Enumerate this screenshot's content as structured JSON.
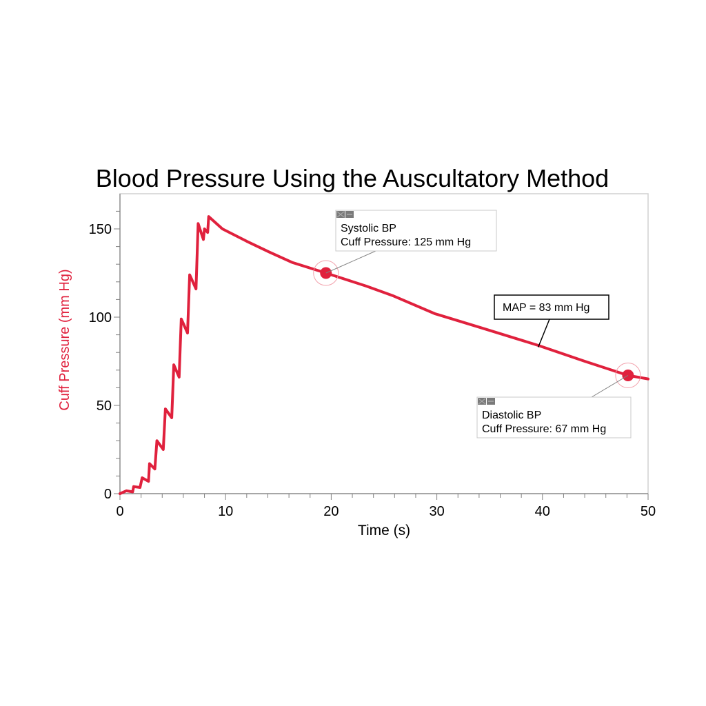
{
  "chart_data": {
    "type": "line",
    "title": "Blood Pressure Using the Auscultatory Method",
    "xlabel": "Time (s)",
    "ylabel": "Cuff Pressure (mm Hg)",
    "xlim": [
      0,
      50
    ],
    "ylim": [
      0,
      170
    ],
    "x_ticks": [
      0,
      10,
      20,
      30,
      40,
      50
    ],
    "x_tick_labels": [
      "0",
      "10",
      "20",
      "30",
      "40",
      "50"
    ],
    "x_minor_step": 2,
    "y_ticks": [
      0,
      50,
      100,
      150
    ],
    "y_tick_labels": [
      "0",
      "50",
      "100",
      "150"
    ],
    "y_minor_step": 10,
    "grid": false,
    "series": [
      {
        "name": "Cuff Pressure",
        "color": "#e0213d",
        "x": [
          0,
          0.6,
          1.2,
          1.3,
          1.9,
          2.1,
          2.7,
          2.8,
          3.3,
          3.5,
          4.1,
          4.3,
          4.9,
          5.1,
          5.6,
          5.8,
          6.4,
          6.6,
          7.2,
          7.4,
          7.9,
          8.0,
          8.3,
          8.4,
          9.7,
          12.0,
          14.1,
          16.3,
          19.5,
          23.3,
          25.9,
          29.8,
          34.2,
          39.6,
          44.0,
          48.1,
          50.0
        ],
        "y": [
          0,
          1.6,
          1,
          4,
          3.5,
          9,
          7,
          17,
          14,
          30,
          25,
          48,
          43,
          73,
          66,
          99,
          91,
          124,
          116,
          153,
          144,
          150,
          148,
          157,
          150,
          143,
          137,
          131,
          125,
          117.6,
          112,
          102,
          94,
          84,
          75,
          67,
          65
        ]
      }
    ],
    "annotations": [
      {
        "id": "systolic",
        "x": 19.5,
        "y": 125,
        "lines": [
          "Systolic BP",
          "Cuff Pressure: 125 mm Hg"
        ],
        "marker_color": "#e0213d"
      },
      {
        "id": "map",
        "x": 39.6,
        "y": 83,
        "lines": [
          "MAP = 83 mm Hg"
        ]
      },
      {
        "id": "diastolic",
        "x": 48.1,
        "y": 67,
        "lines": [
          "Diastolic BP",
          "Cuff Pressure: 67 mm Hg"
        ],
        "marker_color": "#e0213d"
      }
    ]
  }
}
